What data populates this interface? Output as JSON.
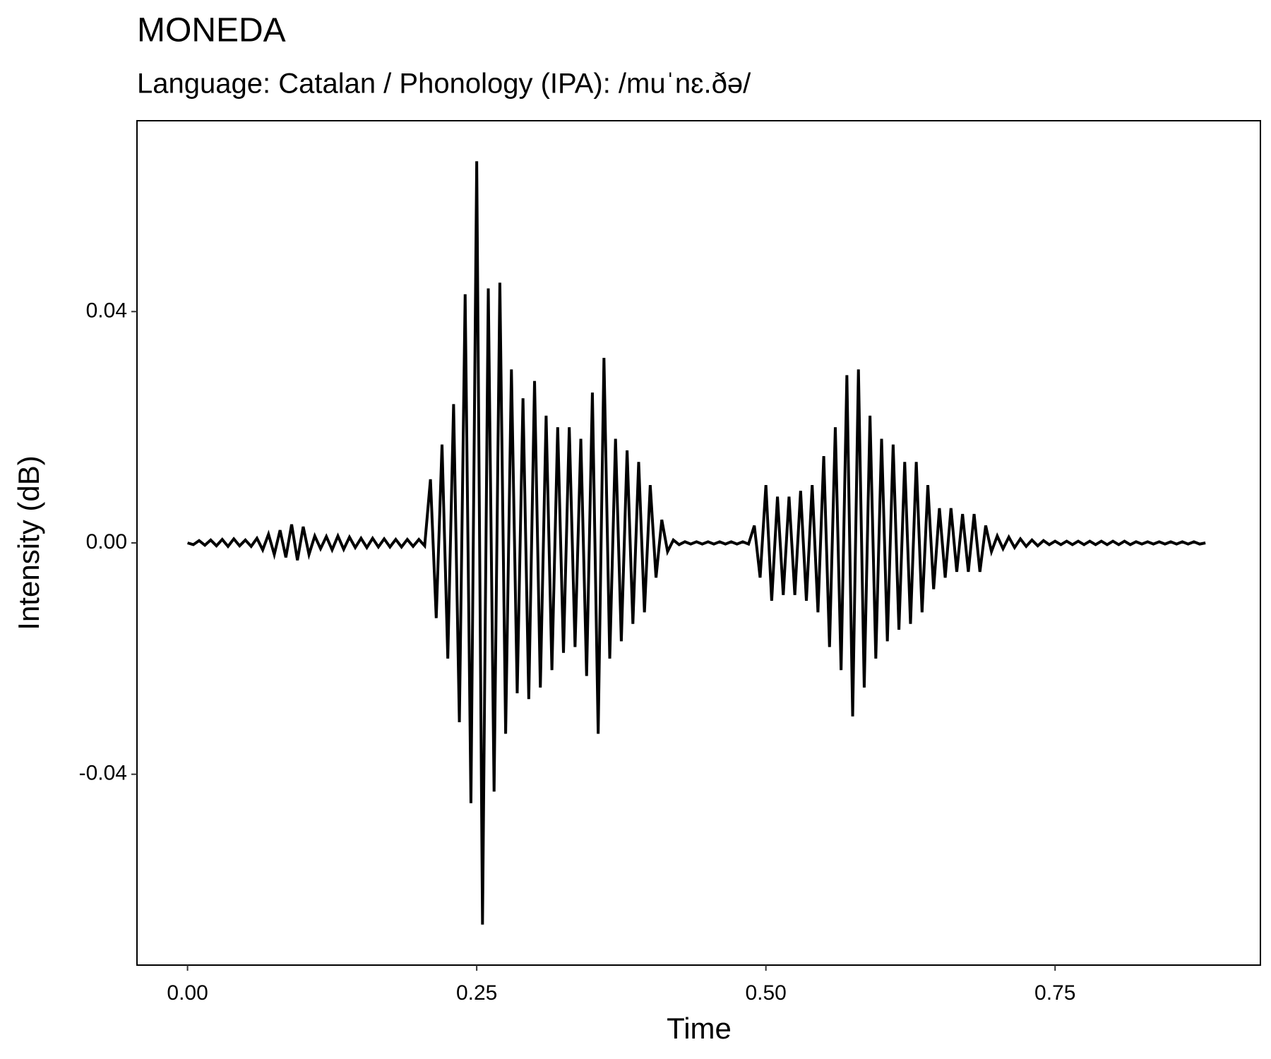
{
  "chart_data": {
    "type": "line",
    "title": "MONEDA",
    "subtitle": "Language: Catalan / Phonology (IPA): /muˈnɛ.ðə/",
    "x_label": "Time",
    "y_label": "Intensity (dB)",
    "xlim": [
      -0.0437,
      0.9275
    ],
    "ylim": [
      -0.073,
      0.073
    ],
    "xticks": [
      {
        "value": 0,
        "label": "0.00"
      },
      0.25,
      {
        "value": 0.5,
        "label": "0.50"
      },
      0.75
    ],
    "yticks": [
      {
        "value": -0.04,
        "label": "-0.04"
      },
      {
        "value": 0,
        "label": "0.00"
      },
      0.04
    ],
    "color": "#000000",
    "x": [
      0,
      0.005,
      0.01,
      0.015,
      0.02,
      0.025,
      0.03,
      0.035,
      0.04,
      0.045,
      0.05,
      0.055,
      0.06,
      0.065,
      0.07,
      0.075,
      0.08,
      0.085,
      0.09,
      0.095,
      0.1,
      0.105,
      0.11,
      0.115,
      0.12,
      0.125,
      0.13,
      0.135,
      0.14,
      0.145,
      0.15,
      0.155,
      0.16,
      0.165,
      0.17,
      0.175,
      0.18,
      0.185,
      0.19,
      0.195,
      0.2,
      0.205,
      0.21,
      0.215,
      0.22,
      0.225,
      0.23,
      0.235,
      0.24,
      0.245,
      0.25,
      0.255,
      0.26,
      0.265,
      0.27,
      0.275,
      0.28,
      0.285,
      0.29,
      0.295,
      0.3,
      0.305,
      0.31,
      0.315,
      0.32,
      0.325,
      0.33,
      0.335,
      0.34,
      0.345,
      0.35,
      0.355,
      0.36,
      0.365,
      0.37,
      0.375,
      0.38,
      0.385,
      0.39,
      0.395,
      0.4,
      0.405,
      0.41,
      0.415,
      0.42,
      0.425,
      0.43,
      0.435,
      0.44,
      0.445,
      0.45,
      0.455,
      0.46,
      0.465,
      0.47,
      0.475,
      0.48,
      0.485,
      0.49,
      0.495,
      0.5,
      0.505,
      0.51,
      0.515,
      0.52,
      0.525,
      0.53,
      0.535,
      0.54,
      0.545,
      0.55,
      0.555,
      0.56,
      0.565,
      0.57,
      0.575,
      0.58,
      0.585,
      0.59,
      0.595,
      0.6,
      0.605,
      0.61,
      0.615,
      0.62,
      0.625,
      0.63,
      0.635,
      0.64,
      0.645,
      0.65,
      0.655,
      0.66,
      0.665,
      0.67,
      0.675,
      0.68,
      0.685,
      0.69,
      0.695,
      0.7,
      0.705,
      0.71,
      0.715,
      0.72,
      0.725,
      0.73,
      0.735,
      0.74,
      0.745,
      0.75,
      0.755,
      0.76,
      0.765,
      0.77,
      0.775,
      0.78,
      0.785,
      0.79,
      0.795,
      0.8,
      0.805,
      0.81,
      0.815,
      0.82,
      0.825,
      0.83,
      0.835,
      0.84,
      0.845,
      0.85,
      0.855,
      0.86,
      0.865,
      0.87,
      0.875,
      0.88
    ],
    "values": [
      0,
      -0.0003,
      0.0004,
      -0.0004,
      0.0005,
      -0.0005,
      0.0006,
      -0.0006,
      0.0007,
      -0.0005,
      0.0005,
      -0.0006,
      0.0008,
      -0.0012,
      0.0015,
      -0.002,
      0.0022,
      -0.0025,
      0.0032,
      -0.003,
      0.0028,
      -0.002,
      0.0012,
      -0.001,
      0.0011,
      -0.0012,
      0.0012,
      -0.0011,
      0.001,
      -0.0008,
      0.0008,
      -0.0008,
      0.0008,
      -0.0007,
      0.0007,
      -0.0007,
      0.0006,
      -0.0007,
      0.0006,
      -0.0006,
      0.0006,
      -0.0005,
      0.011,
      -0.013,
      0.017,
      -0.02,
      0.024,
      -0.031,
      0.043,
      -0.045,
      0.066,
      -0.066,
      0.044,
      -0.043,
      0.045,
      -0.033,
      0.03,
      -0.026,
      0.025,
      -0.027,
      0.028,
      -0.025,
      0.022,
      -0.022,
      0.02,
      -0.019,
      0.02,
      -0.018,
      0.018,
      -0.023,
      0.026,
      -0.033,
      0.032,
      -0.02,
      0.018,
      -0.017,
      0.016,
      -0.014,
      0.014,
      -0.012,
      0.01,
      -0.006,
      0.004,
      -0.0015,
      0.0005,
      -0.0003,
      0.0002,
      -0.0002,
      0.0002,
      -0.0002,
      0.0002,
      -0.0002,
      0.0002,
      -0.0002,
      0.0002,
      -0.0002,
      0.0002,
      -0.0002,
      0.003,
      -0.006,
      0.01,
      -0.01,
      0.008,
      -0.009,
      0.008,
      -0.009,
      0.009,
      -0.01,
      0.01,
      -0.012,
      0.015,
      -0.018,
      0.02,
      -0.022,
      0.029,
      -0.03,
      0.03,
      -0.025,
      0.022,
      -0.02,
      0.018,
      -0.017,
      0.017,
      -0.015,
      0.014,
      -0.014,
      0.014,
      -0.012,
      0.01,
      -0.008,
      0.006,
      -0.006,
      0.006,
      -0.005,
      0.005,
      -0.005,
      0.005,
      -0.005,
      0.003,
      -0.0015,
      0.0012,
      -0.001,
      0.001,
      -0.0008,
      0.0007,
      -0.0006,
      0.0005,
      -0.0005,
      0.0004,
      -0.0003,
      0.0003,
      -0.0003,
      0.0003,
      -0.0003,
      0.0003,
      -0.0003,
      0.0003,
      -0.0003,
      0.0003,
      -0.0003,
      0.0003,
      -0.0003,
      0.0003,
      -0.0003,
      0.0002,
      -0.0002,
      0.0002,
      -0.0002,
      0.0002,
      -0.0002,
      0.0002,
      -0.0002,
      0.0002,
      -0.0002,
      0.0002,
      -0.0002,
      0
    ]
  }
}
